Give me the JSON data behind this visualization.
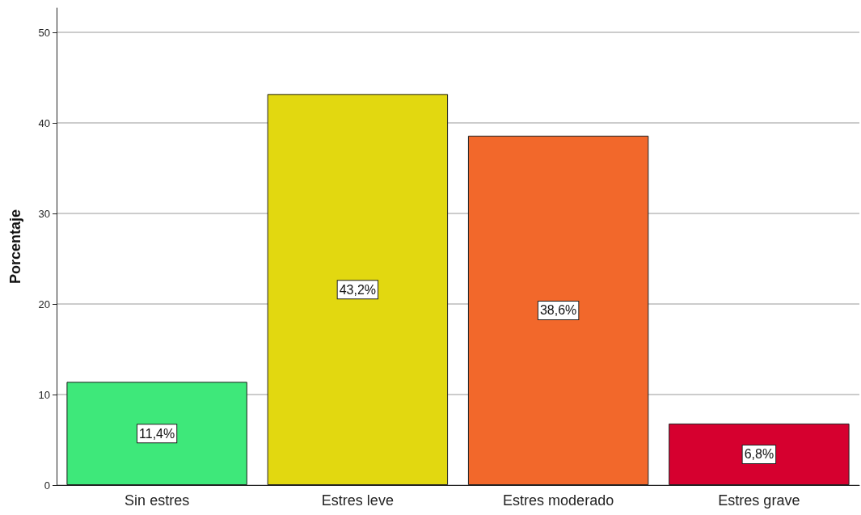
{
  "chart_data": {
    "type": "bar",
    "ylabel": "Porcentaje",
    "categories": [
      "Sin estres",
      "Estres leve",
      "Estres moderado",
      "Estres grave"
    ],
    "values": [
      11.4,
      43.2,
      38.6,
      6.8
    ],
    "colors": [
      "#3ee87a",
      "#e2d810",
      "#f2682b",
      "#d6002f"
    ],
    "value_labels": [
      "11,4%",
      "43,2%",
      "38,6%",
      "6,8%"
    ],
    "ylim": [
      0,
      52.7
    ],
    "yticks": [
      0,
      10,
      20,
      30,
      40,
      50
    ],
    "grid": "y"
  }
}
